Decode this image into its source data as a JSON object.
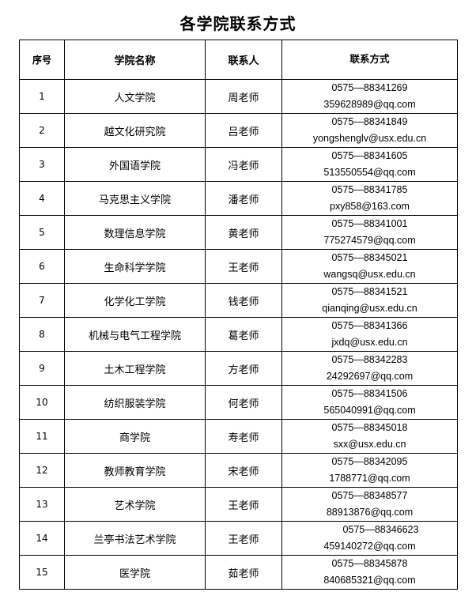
{
  "title": "各学院联系方式",
  "headers": [
    "序号",
    "学院名称",
    "联系人",
    "联系方式"
  ],
  "rows": [
    {
      "no": "1",
      "college": "人文学院",
      "contact": "周老师",
      "phone": "0575—88341269",
      "email": "359628989@qq.com"
    },
    {
      "no": "2",
      "college": "越文化研究院",
      "contact": "吕老师",
      "phone": "0575—88341849",
      "email": "yongshenglv@usx.edu.cn"
    },
    {
      "no": "3",
      "college": "外国语学院",
      "contact": "冯老师",
      "phone": "0575—88341605",
      "email": "513550554@qq.com"
    },
    {
      "no": "4",
      "college": "马克思主义学院",
      "contact": "潘老师",
      "phone": "0575—88341785",
      "email": "pxy858@163.com"
    },
    {
      "no": "5",
      "college": "数理信息学院",
      "contact": "黄老师",
      "phone": "0575—88341001",
      "email": "775274579@qq.com"
    },
    {
      "no": "6",
      "college": "生命科学学院",
      "contact": "王老师",
      "phone": "0575—88345021",
      "email": "wangsq@usx.edu.cn"
    },
    {
      "no": "7",
      "college": "化学化工学院",
      "contact": "钱老师",
      "phone": "0575—88341521",
      "email": "qianqing@usx.edu.cn"
    },
    {
      "no": "8",
      "college": "机械与电气工程学院",
      "contact": "葛老师",
      "phone": "0575—88341366",
      "email": "jxdq@usx.edu.cn"
    },
    {
      "no": "9",
      "college": "土木工程学院",
      "contact": "方老师",
      "phone": "0575—88342283",
      "email": "24292697@qq.com"
    },
    {
      "no": "10",
      "college": "纺织服装学院",
      "contact": "何老师",
      "phone": "0575—88341506",
      "email": "565040991@qq.com"
    },
    {
      "no": "11",
      "college": "商学院",
      "contact": "寿老师",
      "phone": "0575—88345018",
      "email": "sxx@usx.edu.cn"
    },
    {
      "no": "12",
      "college": "教师教育学院",
      "contact": "宋老师",
      "phone": "0575—88342095",
      "email": "1788771@qq.com"
    },
    {
      "no": "13",
      "college": "艺术学院",
      "contact": "王老师",
      "phone": "0575—88348577",
      "email": "88913876@qq.com"
    },
    {
      "no": "14",
      "college": "兰亭书法艺术学院",
      "contact": "王老师",
      "phone": "0575—88346623",
      "email": "459140272@qq.com"
    },
    {
      "no": "15",
      "college": "医学院",
      "contact": "茹老师",
      "phone": "0575—88345878",
      "email": "840685321@qq.com"
    }
  ]
}
